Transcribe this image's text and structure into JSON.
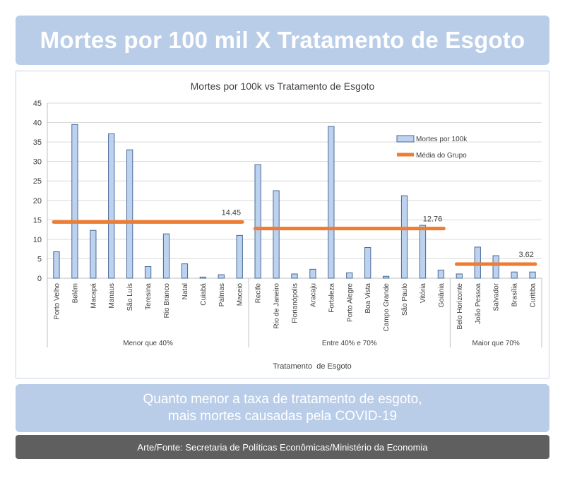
{
  "header": {
    "title": "Mortes por 100 mil X Tratamento de Esgoto"
  },
  "subtitle": {
    "line1": "Quanto menor a taxa de tratamento de esgoto,",
    "line2": "mais mortes causadas pela COVID-19"
  },
  "footer": {
    "text": "Arte/Fonte: Secretaria de Políticas Econômicas/Ministério da Economia"
  },
  "colors": {
    "banner": "#b9cde9",
    "bar_fill": "#bcd2ee",
    "bar_stroke": "#4a6a99",
    "mean_line": "#ed7d31",
    "footer": "#5f5f5f"
  },
  "chart_data": {
    "type": "bar",
    "title": "Mortes por 100k vs Tratamento de Esgoto",
    "xlabel": "Tratamento  de Esgoto",
    "ylabel": "",
    "ylim": [
      0,
      45
    ],
    "yticks": [
      0,
      5,
      10,
      15,
      20,
      25,
      30,
      35,
      40,
      45
    ],
    "legend_position": "right",
    "categories": [
      "Porto Velho",
      "Belém",
      "Macapá",
      "Manaus",
      "São Luís",
      "Teresina",
      "Rio Branco",
      "Natal",
      "Cuiabá",
      "Palmas",
      "Maceió",
      "Recife",
      "Rio de Janeiro",
      "Florianópolis",
      "Aracaju",
      "Fortaleza",
      "Porto Alegre",
      "Boa Vista",
      "Campo Grande",
      "São Paulo",
      "Vitória",
      "Goiânia",
      "Belo Horizonte",
      "João Pessoa",
      "Salvador",
      "Brasília",
      "Curitiba"
    ],
    "series": [
      {
        "name": "Mortes por 100k",
        "values": [
          6.8,
          39.5,
          12.3,
          37.1,
          33.0,
          3.0,
          11.4,
          3.7,
          0.3,
          0.9,
          11.0,
          29.2,
          22.5,
          1.1,
          2.3,
          39.0,
          1.4,
          7.9,
          0.5,
          21.2,
          13.6,
          2.1,
          1.1,
          8.0,
          5.8,
          1.6,
          1.6
        ]
      }
    ],
    "group_mean": {
      "name": "Média do Grupo",
      "groups": [
        {
          "label": "Menor que 40%",
          "start": 0,
          "end": 10,
          "value": 14.45,
          "value_label": "14.45"
        },
        {
          "label": "Entre 40% e 70%",
          "start": 11,
          "end": 21,
          "value": 12.76,
          "value_label": "12.76"
        },
        {
          "label": "Maior que 70%",
          "start": 22,
          "end": 26,
          "value": 3.62,
          "value_label": "3.62"
        }
      ]
    }
  }
}
